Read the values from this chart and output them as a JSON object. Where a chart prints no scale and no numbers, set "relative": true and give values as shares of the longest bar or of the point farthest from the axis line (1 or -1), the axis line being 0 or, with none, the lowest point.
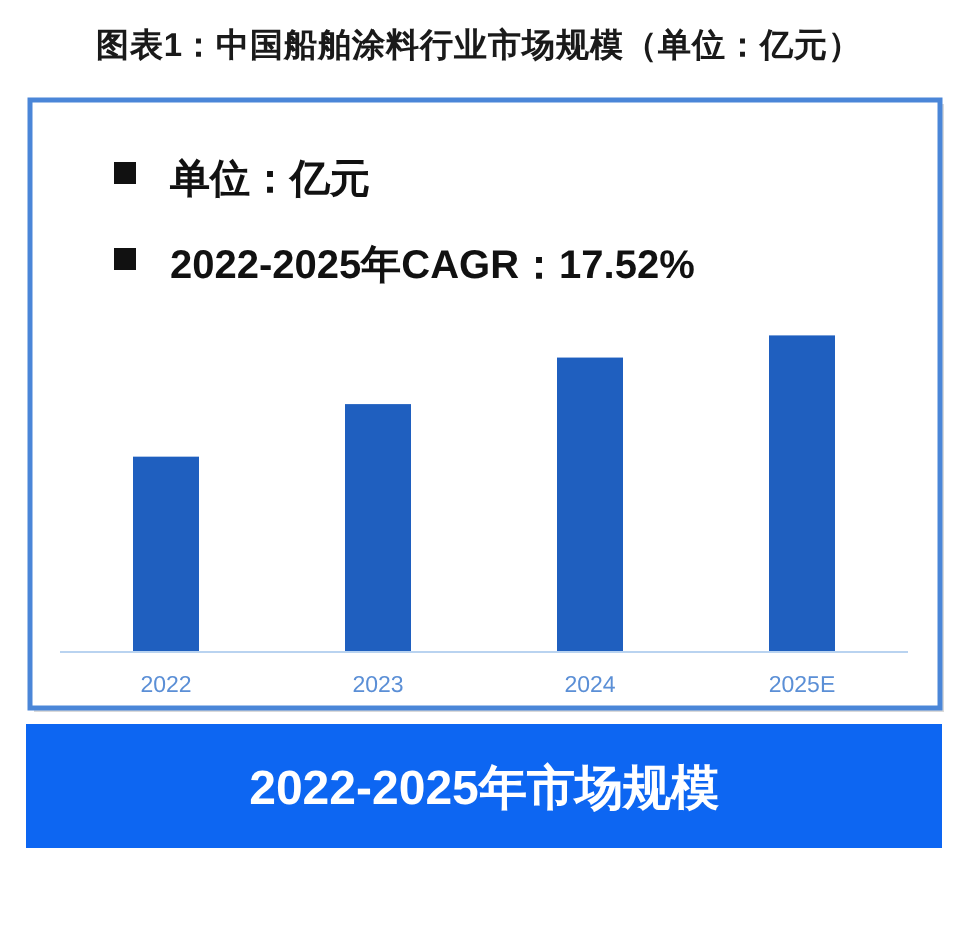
{
  "chart_data": {
    "type": "bar",
    "title": "图表1：中国船舶涂料行业市场规模（单位：亿元）",
    "xlabel": "2022-2025年市场规模",
    "annotations": [
      "单位：亿元",
      "2022-2025年CAGR：17.52%"
    ],
    "categories": [
      "2022",
      "2023",
      "2024",
      "2025E"
    ],
    "values": [
      0.617,
      0.783,
      0.93,
      1
    ],
    "color": "#1f5fbf",
    "relative": true
  }
}
